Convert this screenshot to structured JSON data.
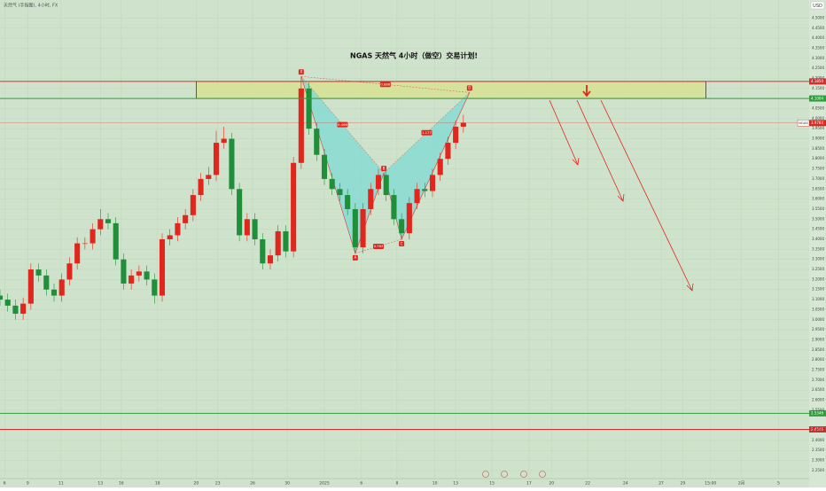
{
  "chart_data": {
    "type": "candlestick",
    "title": "NGAS  天然气  4小时（做空）交易计划!",
    "subtitle": "天然气 (手指图), 4小时, FX",
    "currency": "USD",
    "symbol": "NGAS",
    "background": "#cfe3cc",
    "grid": true,
    "up_color": "#e0261d",
    "down_color": "#1f8f3a",
    "xlim": [
      0,
      105
    ],
    "ylim": [
      2.21,
      4.59
    ],
    "x": [
      0,
      1,
      2,
      3,
      4,
      5,
      6,
      7,
      8,
      9,
      10,
      11,
      12,
      13,
      14,
      15,
      16,
      17,
      18,
      19,
      20,
      21,
      22,
      23,
      24,
      25,
      26,
      27,
      28,
      29,
      30,
      31,
      32,
      33,
      34,
      35,
      36,
      37,
      38,
      39,
      40,
      41,
      42,
      43,
      44,
      45,
      46,
      47,
      48,
      49,
      50,
      51,
      52,
      53,
      54,
      55,
      56,
      57,
      58,
      59,
      60
    ],
    "open": [
      3.12,
      3.1,
      3.07,
      3.03,
      3.08,
      3.25,
      3.22,
      3.15,
      3.12,
      3.2,
      3.28,
      3.38,
      3.38,
      3.45,
      3.5,
      3.48,
      3.3,
      3.18,
      3.22,
      3.24,
      3.2,
      3.12,
      3.4,
      3.42,
      3.48,
      3.52,
      3.62,
      3.7,
      3.72,
      3.88,
      3.9,
      3.65,
      3.42,
      3.5,
      3.4,
      3.28,
      3.32,
      3.44,
      3.34,
      3.78,
      4.15,
      3.95,
      3.82,
      3.7,
      3.65,
      3.62,
      3.55,
      3.36,
      3.55,
      3.65,
      3.72,
      3.62,
      3.5,
      3.43,
      3.58,
      3.65,
      3.64,
      3.72,
      3.8,
      3.88,
      3.96
    ],
    "high": [
      3.15,
      3.13,
      3.1,
      3.11,
      3.28,
      3.28,
      3.25,
      3.18,
      3.23,
      3.31,
      3.41,
      3.41,
      3.48,
      3.55,
      3.53,
      3.51,
      3.33,
      3.25,
      3.27,
      3.27,
      3.23,
      3.43,
      3.45,
      3.51,
      3.55,
      3.65,
      3.73,
      3.76,
      3.94,
      3.96,
      3.93,
      3.68,
      3.53,
      3.53,
      3.43,
      3.35,
      3.47,
      3.47,
      3.81,
      4.21,
      4.18,
      3.98,
      3.85,
      3.73,
      3.68,
      3.65,
      3.58,
      3.58,
      3.68,
      3.75,
      3.75,
      3.65,
      3.53,
      3.61,
      3.68,
      3.68,
      3.75,
      3.83,
      3.91,
      3.99,
      4.02
    ],
    "low": [
      3.07,
      3.04,
      3.0,
      3.0,
      3.05,
      3.19,
      3.12,
      3.09,
      3.09,
      3.17,
      3.25,
      3.35,
      3.35,
      3.42,
      3.45,
      3.27,
      3.15,
      3.15,
      3.19,
      3.17,
      3.08,
      3.09,
      3.37,
      3.39,
      3.45,
      3.49,
      3.59,
      3.67,
      3.69,
      3.85,
      3.62,
      3.39,
      3.39,
      3.37,
      3.25,
      3.25,
      3.29,
      3.31,
      3.31,
      3.75,
      3.92,
      3.79,
      3.67,
      3.62,
      3.59,
      3.52,
      3.33,
      3.33,
      3.52,
      3.62,
      3.59,
      3.47,
      3.4,
      3.4,
      3.55,
      3.61,
      3.61,
      3.69,
      3.77,
      3.85,
      3.93
    ],
    "close": [
      3.1,
      3.07,
      3.03,
      3.08,
      3.25,
      3.22,
      3.15,
      3.12,
      3.2,
      3.28,
      3.38,
      3.38,
      3.45,
      3.5,
      3.48,
      3.3,
      3.18,
      3.22,
      3.24,
      3.2,
      3.12,
      3.4,
      3.42,
      3.48,
      3.52,
      3.62,
      3.7,
      3.72,
      3.88,
      3.9,
      3.65,
      3.42,
      3.5,
      3.4,
      3.28,
      3.32,
      3.44,
      3.34,
      3.78,
      4.15,
      3.95,
      3.82,
      3.7,
      3.65,
      3.62,
      3.55,
      3.36,
      3.55,
      3.65,
      3.72,
      3.62,
      3.5,
      3.43,
      3.58,
      3.65,
      3.64,
      3.72,
      3.8,
      3.88,
      3.96,
      3.98
    ],
    "xticks": [
      {
        "value": 0.6,
        "label": "6"
      },
      {
        "value": 3.6,
        "label": "9"
      },
      {
        "value": 7.9,
        "label": "11"
      },
      {
        "value": 13,
        "label": "13"
      },
      {
        "value": 15.7,
        "label": "16"
      },
      {
        "value": 20.4,
        "label": "18"
      },
      {
        "value": 25.4,
        "label": "20"
      },
      {
        "value": 28.2,
        "label": "23"
      },
      {
        "value": 32.7,
        "label": "26"
      },
      {
        "value": 37.2,
        "label": "30"
      },
      {
        "value": 42,
        "label": "2025"
      },
      {
        "value": 46.8,
        "label": "6"
      },
      {
        "value": 51.4,
        "label": "8"
      },
      {
        "value": 56.3,
        "label": "10"
      },
      {
        "value": 59,
        "label": "13"
      },
      {
        "value": 63.7,
        "label": "15"
      },
      {
        "value": 68.5,
        "label": "17"
      },
      {
        "value": 71.4,
        "label": "20"
      },
      {
        "value": 76.1,
        "label": "22"
      },
      {
        "value": 81,
        "label": "24"
      },
      {
        "value": 85.6,
        "label": "27"
      },
      {
        "value": 88.4,
        "label": "29"
      },
      {
        "value": 92,
        "label": "15:00"
      },
      {
        "value": 96,
        "label": "2月"
      },
      {
        "value": 100.8,
        "label": "5"
      }
    ],
    "yticks": [
      {
        "value": 4.5,
        "label": "4.5000"
      },
      {
        "value": 4.45,
        "label": "4.4500"
      },
      {
        "value": 4.4,
        "label": "4.4000"
      },
      {
        "value": 4.35,
        "label": "4.3500"
      },
      {
        "value": 4.3,
        "label": "4.3000"
      },
      {
        "value": 4.25,
        "label": "4.2500"
      },
      {
        "value": 4.2,
        "label": "4.2000"
      },
      {
        "value": 4.15,
        "label": "4.1500"
      },
      {
        "value": 4.05,
        "label": "4.0500"
      },
      {
        "value": 4,
        "label": "4.0000"
      },
      {
        "value": 3.95,
        "label": "3.9500"
      },
      {
        "value": 3.9,
        "label": "3.9000"
      },
      {
        "value": 3.85,
        "label": "3.8500"
      },
      {
        "value": 3.8,
        "label": "3.8000"
      },
      {
        "value": 3.75,
        "label": "3.7500"
      },
      {
        "value": 3.7,
        "label": "3.7000"
      },
      {
        "value": 3.65,
        "label": "3.6500"
      },
      {
        "value": 3.6,
        "label": "3.6000"
      },
      {
        "value": 3.55,
        "label": "3.5500"
      },
      {
        "value": 3.5,
        "label": "3.5000"
      },
      {
        "value": 3.45,
        "label": "3.4500"
      },
      {
        "value": 3.4,
        "label": "3.4000"
      },
      {
        "value": 3.35,
        "label": "3.3500"
      },
      {
        "value": 3.3,
        "label": "3.3000"
      },
      {
        "value": 3.25,
        "label": "3.2500"
      },
      {
        "value": 3.2,
        "label": "3.2000"
      },
      {
        "value": 3.15,
        "label": "3.1500"
      },
      {
        "value": 3.1,
        "label": "3.1000"
      },
      {
        "value": 3.05,
        "label": "3.0500"
      },
      {
        "value": 3,
        "label": "3.0000"
      },
      {
        "value": 2.95,
        "label": "2.9500"
      },
      {
        "value": 2.9,
        "label": "2.9000"
      },
      {
        "value": 2.85,
        "label": "2.8500"
      },
      {
        "value": 2.8,
        "label": "2.8000"
      },
      {
        "value": 2.75,
        "label": "2.7500"
      },
      {
        "value": 2.7,
        "label": "2.7000"
      },
      {
        "value": 2.65,
        "label": "2.6500"
      },
      {
        "value": 2.6,
        "label": "2.6000"
      },
      {
        "value": 2.55,
        "label": "2.5500"
      },
      {
        "value": 2.45,
        "label": "2.4500"
      },
      {
        "value": 2.4,
        "label": "2.4000"
      },
      {
        "value": 2.35,
        "label": "2.3500"
      },
      {
        "value": 2.3,
        "label": "2.3000"
      },
      {
        "value": 2.25,
        "label": "2.2500"
      }
    ],
    "levels": [
      {
        "value": 4.185,
        "label": "4.1850",
        "color": "#d32f2f"
      },
      {
        "value": 4.1004,
        "label": "4.1004",
        "color": "#2e9e3e"
      },
      {
        "value": 2.5346,
        "label": "2.5346",
        "color": "#2e9e3e"
      },
      {
        "value": 2.4546,
        "label": "2.4546",
        "color": "#d32f2f"
      }
    ],
    "last_price": {
      "value": 3.9784,
      "label": "3.9784",
      "color": "#e0261d"
    },
    "zone": {
      "xlim": [
        25.4,
        91.4
      ],
      "ylim": [
        4.1004,
        4.185
      ],
      "color": "#d6e29b"
    },
    "pattern": {
      "color": "#7fd9d4",
      "points": [
        {
          "label": "X",
          "x": 39,
          "y": 4.21
        },
        {
          "label": "A",
          "x": 46,
          "y": 3.33
        },
        {
          "label": "B",
          "x": 49.7,
          "y": 3.73
        },
        {
          "label": "C",
          "x": 52,
          "y": 3.4
        },
        {
          "label": "D",
          "x": 60.8,
          "y": 4.13
        }
      ],
      "ratios": [
        {
          "label": "0.466"
        },
        {
          "label": "0.763"
        },
        {
          "label": "1.177"
        },
        {
          "label": "0.886"
        }
      ]
    }
  }
}
